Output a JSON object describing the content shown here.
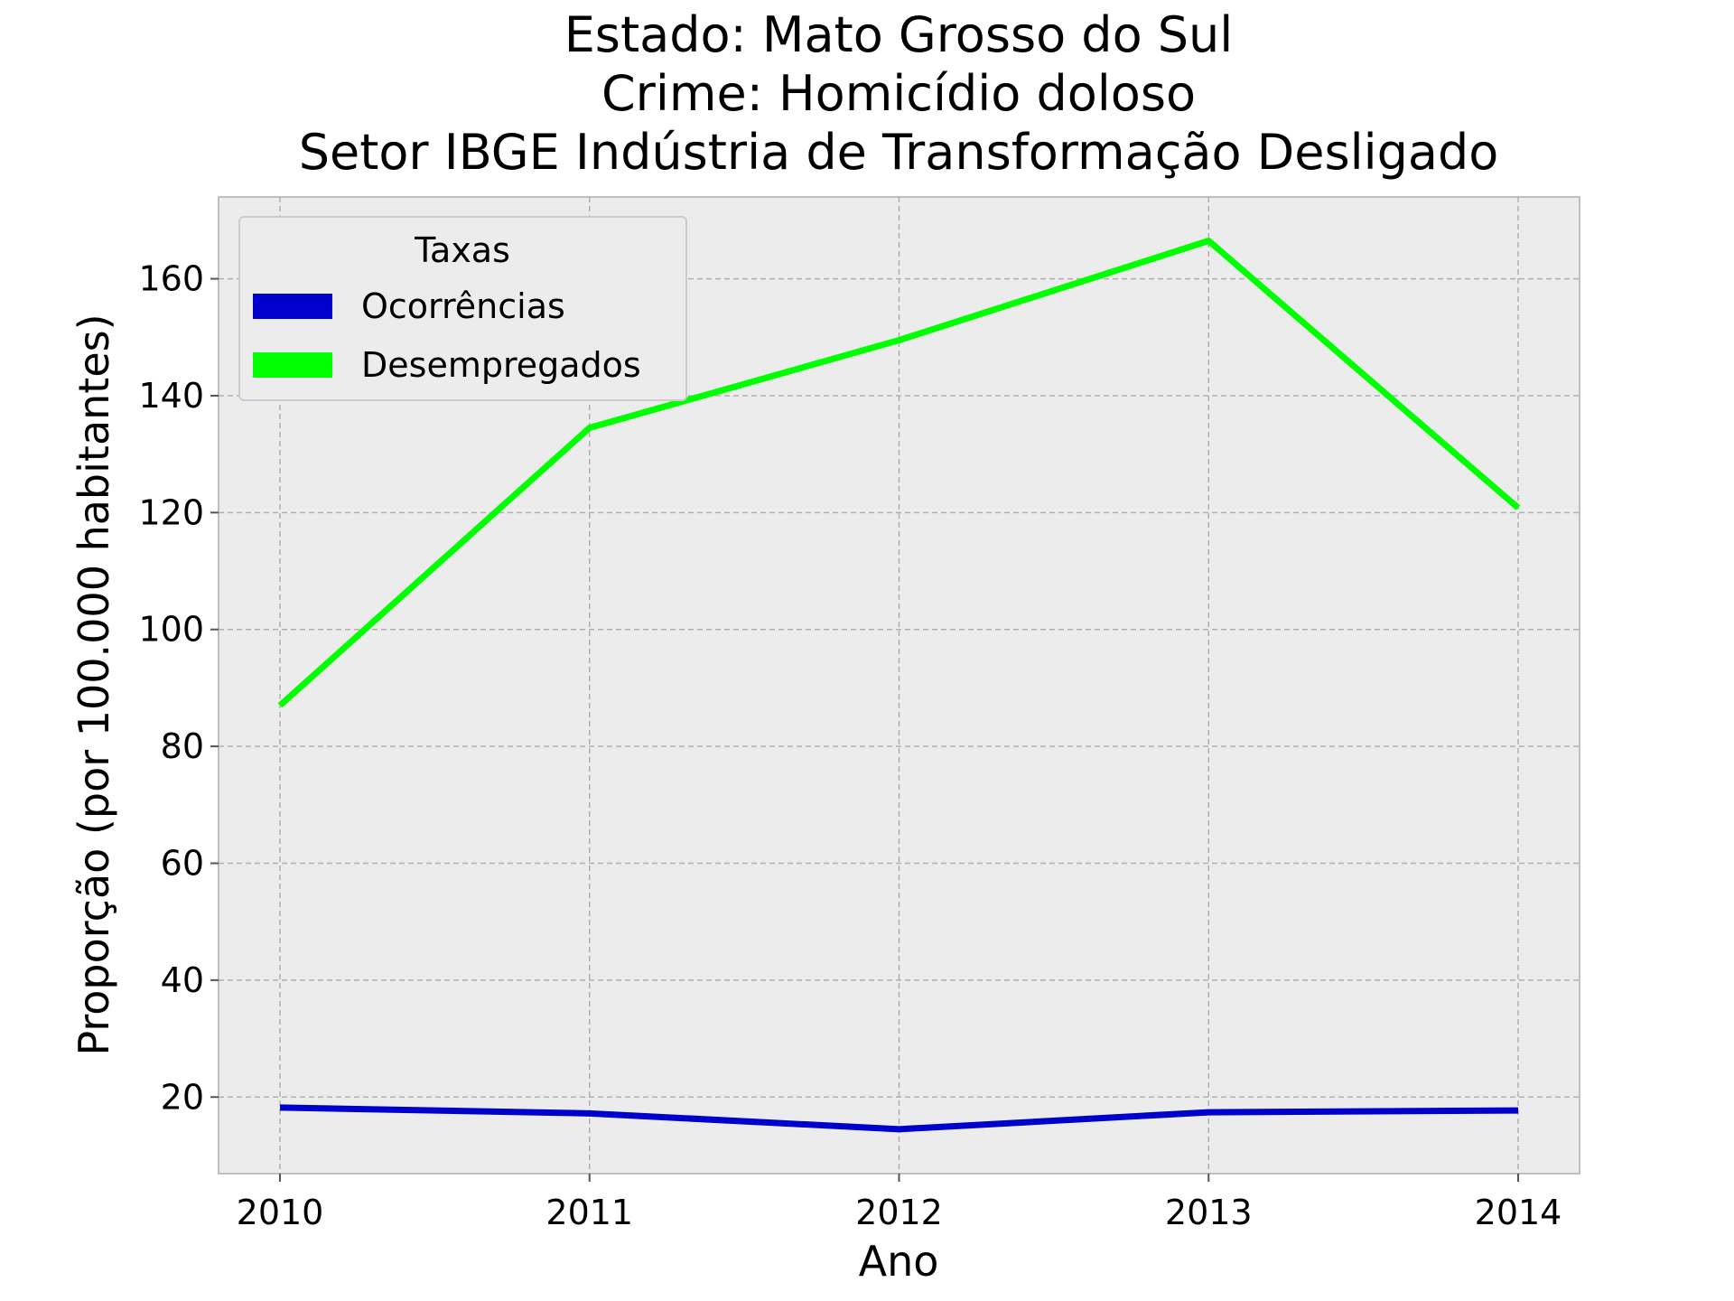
{
  "chart_data": {
    "type": "line",
    "title_lines": [
      "Estado: Mato Grosso do Sul",
      "Crime: Homicídio doloso",
      "Setor IBGE  Indústria de Transformação   Desligado"
    ],
    "xlabel": "Ano",
    "ylabel": "Proporção (por 100.000 habitantes)",
    "categories": [
      "2010",
      "2011",
      "2012",
      "2013",
      "2014"
    ],
    "ylim": [
      6.9,
      174
    ],
    "yticks": [
      20,
      40,
      60,
      80,
      100,
      120,
      140,
      160
    ],
    "grid": true,
    "legend": {
      "title": "Taxas",
      "placement": "top-left"
    },
    "series": [
      {
        "name": "Ocorrências",
        "color": "#0000cc",
        "values": [
          18.2,
          17.2,
          14.5,
          17.4,
          17.7
        ]
      },
      {
        "name": "Desempregados",
        "color": "#00ff00",
        "values": [
          87.0,
          134.5,
          149.5,
          166.5,
          120.8
        ]
      }
    ]
  }
}
